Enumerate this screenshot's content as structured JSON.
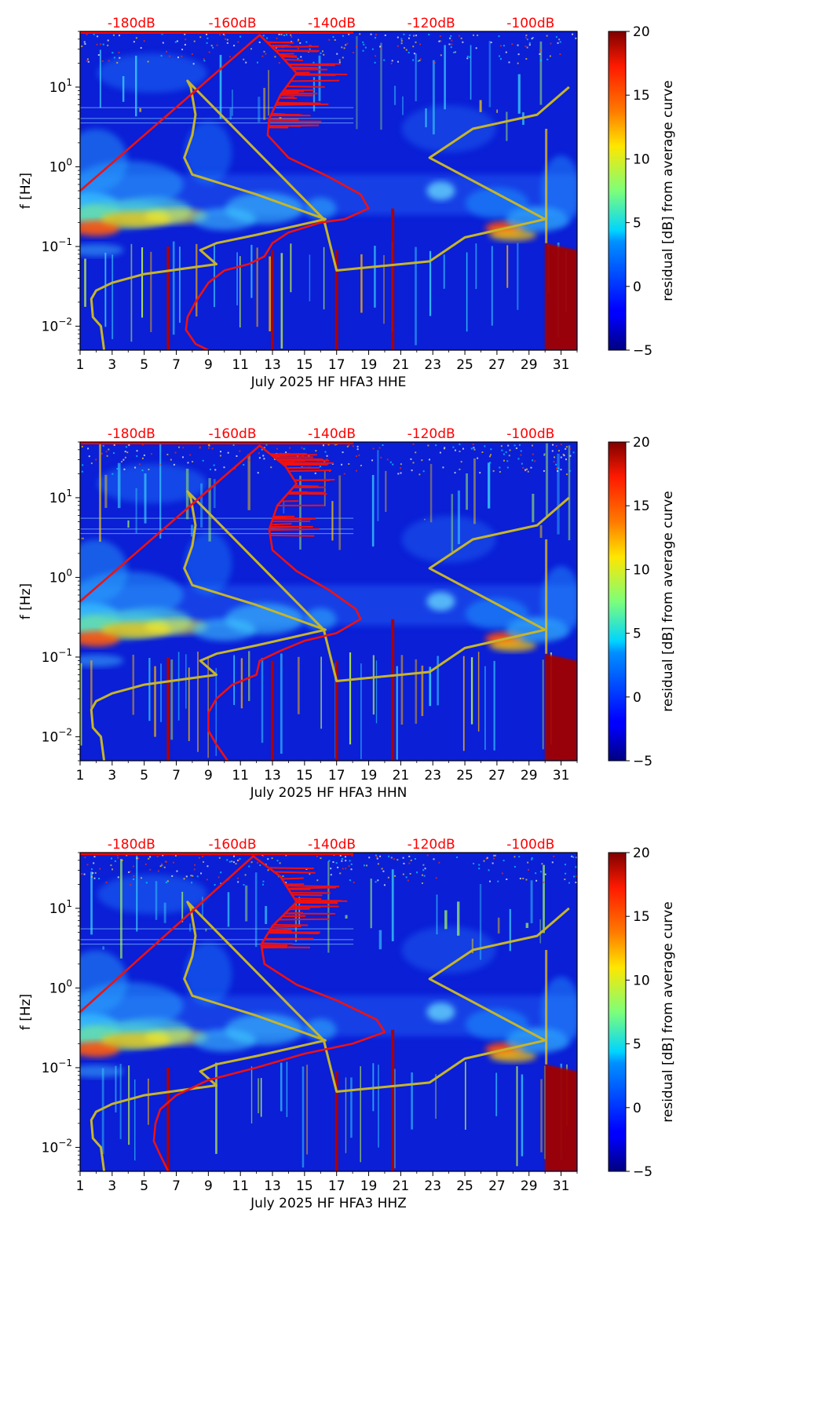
{
  "chart_data": [
    {
      "type": "heatmap",
      "channel": "HHE",
      "xlabel": "July 2025 HF HFA3  HHE",
      "ylabel": "f [Hz]",
      "x_ticks": [
        "1",
        "3",
        "5",
        "7",
        "9",
        "11",
        "13",
        "15",
        "17",
        "19",
        "21",
        "23",
        "25",
        "27",
        "29",
        "31"
      ],
      "x_range": [
        1,
        32
      ],
      "y_scale": "log",
      "y_range": [
        0.005,
        50
      ],
      "y_ticks": [
        {
          "base": "10",
          "exp": "1",
          "value": 10
        },
        {
          "base": "10",
          "exp": "0",
          "value": 1
        },
        {
          "base": "10",
          "exp": "−1",
          "value": 0.1
        },
        {
          "base": "10",
          "exp": "−2",
          "value": 0.01
        }
      ],
      "ref_labels": [
        {
          "text": "-180dB",
          "day": 4.2
        },
        {
          "text": "-160dB",
          "day": 10.5
        },
        {
          "text": "-140dB",
          "day": 16.7
        },
        {
          "text": "-120dB",
          "day": 22.9
        },
        {
          "text": "-100dB",
          "day": 29.1
        }
      ],
      "colorbar": {
        "label": "residual [dB] from average curve",
        "min": -5,
        "max": 20,
        "ticks": [
          "20",
          "15",
          "10",
          "5",
          "0",
          "−5"
        ]
      },
      "red_curve": [
        [
          1.0,
          0.5
        ],
        [
          12.2,
          45
        ],
        [
          13.5,
          25
        ],
        [
          14.5,
          15
        ],
        [
          13.5,
          8
        ],
        [
          12.8,
          4
        ],
        [
          12.7,
          2.5
        ],
        [
          14.0,
          1.3
        ],
        [
          16.5,
          0.75
        ],
        [
          18.5,
          0.45
        ],
        [
          19.0,
          0.3
        ],
        [
          17.5,
          0.22
        ],
        [
          16.0,
          0.2
        ],
        [
          14.0,
          0.15
        ],
        [
          13.0,
          0.11
        ],
        [
          12.5,
          0.075
        ],
        [
          11.5,
          0.06
        ],
        [
          10.0,
          0.05
        ],
        [
          9.0,
          0.035
        ],
        [
          8.2,
          0.02
        ],
        [
          7.7,
          0.013
        ],
        [
          7.6,
          0.009
        ],
        [
          8.2,
          0.006
        ],
        [
          9.0,
          0.005
        ]
      ],
      "yellow_curve": [
        [
          2.5,
          0.005
        ],
        [
          2.3,
          0.01
        ],
        [
          1.8,
          0.013
        ],
        [
          1.7,
          0.022
        ],
        [
          2.0,
          0.028
        ],
        [
          3.0,
          0.035
        ],
        [
          5.0,
          0.045
        ],
        [
          9.5,
          0.06
        ],
        [
          8.5,
          0.09
        ],
        [
          9.5,
          0.11
        ],
        [
          12.0,
          0.14
        ],
        [
          16.3,
          0.22
        ],
        [
          12.0,
          0.45
        ],
        [
          10.0,
          0.6
        ],
        [
          8.0,
          0.8
        ],
        [
          7.5,
          1.3
        ],
        [
          8.0,
          2.5
        ],
        [
          8.2,
          4.5
        ],
        [
          7.9,
          10
        ],
        [
          7.7,
          12
        ],
        [
          16.2,
          0.22
        ],
        [
          17.0,
          0.05
        ],
        [
          22.8,
          0.065
        ],
        [
          25.0,
          0.13
        ],
        [
          30.0,
          0.22
        ],
        [
          22.8,
          1.3
        ],
        [
          25.5,
          3.0
        ],
        [
          29.5,
          4.5
        ],
        [
          31.5,
          10
        ]
      ],
      "hot_days": [
        6.5,
        13.0,
        17.0,
        20.5,
        30.0
      ],
      "low_shift": 0
    },
    {
      "type": "heatmap",
      "channel": "HHN",
      "xlabel": "July 2025 HF HFA3  HHN",
      "ylabel": "f [Hz]",
      "x_ticks": [
        "1",
        "3",
        "5",
        "7",
        "9",
        "11",
        "13",
        "15",
        "17",
        "19",
        "21",
        "23",
        "25",
        "27",
        "29",
        "31"
      ],
      "x_range": [
        1,
        32
      ],
      "y_scale": "log",
      "y_range": [
        0.005,
        50
      ],
      "y_ticks": [
        {
          "base": "10",
          "exp": "1",
          "value": 10
        },
        {
          "base": "10",
          "exp": "0",
          "value": 1
        },
        {
          "base": "10",
          "exp": "−1",
          "value": 0.1
        },
        {
          "base": "10",
          "exp": "−2",
          "value": 0.01
        }
      ],
      "ref_labels": [
        {
          "text": "-180dB",
          "day": 4.2
        },
        {
          "text": "-160dB",
          "day": 10.5
        },
        {
          "text": "-140dB",
          "day": 16.7
        },
        {
          "text": "-120dB",
          "day": 22.9
        },
        {
          "text": "-100dB",
          "day": 29.1
        }
      ],
      "colorbar": {
        "label": "residual [dB] from average curve",
        "min": -5,
        "max": 20,
        "ticks": [
          "20",
          "15",
          "10",
          "5",
          "0",
          "−5"
        ]
      },
      "red_curve": [
        [
          1.0,
          0.5
        ],
        [
          12.2,
          45
        ],
        [
          13.8,
          25
        ],
        [
          14.5,
          15
        ],
        [
          13.3,
          8
        ],
        [
          12.8,
          4
        ],
        [
          13.0,
          2.2
        ],
        [
          14.5,
          1.2
        ],
        [
          16.5,
          0.7
        ],
        [
          18.2,
          0.4
        ],
        [
          18.5,
          0.3
        ],
        [
          17.0,
          0.2
        ],
        [
          15.0,
          0.16
        ],
        [
          13.5,
          0.12
        ],
        [
          12.2,
          0.09
        ],
        [
          12.0,
          0.06
        ],
        [
          10.5,
          0.045
        ],
        [
          9.5,
          0.03
        ],
        [
          9.0,
          0.02
        ],
        [
          9.0,
          0.012
        ],
        [
          9.5,
          0.008
        ],
        [
          10.2,
          0.005
        ]
      ],
      "yellow_curve": [
        [
          2.5,
          0.005
        ],
        [
          2.3,
          0.01
        ],
        [
          1.8,
          0.013
        ],
        [
          1.7,
          0.022
        ],
        [
          2.0,
          0.028
        ],
        [
          3.0,
          0.035
        ],
        [
          5.0,
          0.045
        ],
        [
          9.5,
          0.06
        ],
        [
          8.5,
          0.09
        ],
        [
          9.5,
          0.11
        ],
        [
          12.0,
          0.14
        ],
        [
          16.3,
          0.22
        ],
        [
          12.0,
          0.45
        ],
        [
          10.0,
          0.6
        ],
        [
          8.0,
          0.8
        ],
        [
          7.5,
          1.3
        ],
        [
          8.0,
          2.5
        ],
        [
          8.2,
          4.5
        ],
        [
          7.9,
          10
        ],
        [
          7.7,
          12
        ],
        [
          16.2,
          0.22
        ],
        [
          17.0,
          0.05
        ],
        [
          22.8,
          0.065
        ],
        [
          25.0,
          0.13
        ],
        [
          30.0,
          0.22
        ],
        [
          22.8,
          1.3
        ],
        [
          25.5,
          3.0
        ],
        [
          29.5,
          4.5
        ],
        [
          31.5,
          10
        ]
      ],
      "hot_days": [
        6.5,
        13.0,
        17.0,
        20.5,
        30.0
      ],
      "low_shift": 0
    },
    {
      "type": "heatmap",
      "channel": "HHZ",
      "xlabel": "July 2025 HF HFA3  HHZ",
      "ylabel": "f [Hz]",
      "x_ticks": [
        "1",
        "3",
        "5",
        "7",
        "9",
        "11",
        "13",
        "15",
        "17",
        "19",
        "21",
        "23",
        "25",
        "27",
        "29",
        "31"
      ],
      "x_range": [
        1,
        32
      ],
      "y_scale": "log",
      "y_range": [
        0.005,
        50
      ],
      "y_ticks": [
        {
          "base": "10",
          "exp": "1",
          "value": 10
        },
        {
          "base": "10",
          "exp": "0",
          "value": 1
        },
        {
          "base": "10",
          "exp": "−1",
          "value": 0.1
        },
        {
          "base": "10",
          "exp": "−2",
          "value": 0.01
        }
      ],
      "ref_labels": [
        {
          "text": "-180dB",
          "day": 4.2
        },
        {
          "text": "-160dB",
          "day": 10.5
        },
        {
          "text": "-140dB",
          "day": 16.7
        },
        {
          "text": "-120dB",
          "day": 22.9
        },
        {
          "text": "-100dB",
          "day": 29.1
        }
      ],
      "colorbar": {
        "label": "residual [dB] from average curve",
        "min": -5,
        "max": 20,
        "ticks": [
          "20",
          "15",
          "10",
          "5",
          "0",
          "−5"
        ]
      },
      "red_curve": [
        [
          1.0,
          0.5
        ],
        [
          11.8,
          45
        ],
        [
          13.5,
          25
        ],
        [
          14.5,
          12
        ],
        [
          13.0,
          6
        ],
        [
          12.3,
          3.5
        ],
        [
          12.5,
          2.0
        ],
        [
          14.5,
          1.1
        ],
        [
          17.0,
          0.7
        ],
        [
          19.5,
          0.4
        ],
        [
          20.0,
          0.28
        ],
        [
          18.0,
          0.2
        ],
        [
          15.0,
          0.15
        ],
        [
          12.0,
          0.1
        ],
        [
          9.0,
          0.07
        ],
        [
          7.0,
          0.045
        ],
        [
          6.0,
          0.03
        ],
        [
          5.7,
          0.02
        ],
        [
          5.6,
          0.012
        ],
        [
          6.0,
          0.008
        ],
        [
          6.5,
          0.005
        ]
      ],
      "yellow_curve": [
        [
          2.5,
          0.005
        ],
        [
          2.3,
          0.01
        ],
        [
          1.8,
          0.013
        ],
        [
          1.7,
          0.022
        ],
        [
          2.0,
          0.028
        ],
        [
          3.0,
          0.035
        ],
        [
          5.0,
          0.045
        ],
        [
          9.5,
          0.06
        ],
        [
          8.5,
          0.09
        ],
        [
          9.5,
          0.11
        ],
        [
          12.0,
          0.14
        ],
        [
          16.3,
          0.22
        ],
        [
          12.0,
          0.45
        ],
        [
          10.0,
          0.6
        ],
        [
          8.0,
          0.8
        ],
        [
          7.5,
          1.3
        ],
        [
          8.0,
          2.5
        ],
        [
          8.2,
          4.5
        ],
        [
          7.9,
          10
        ],
        [
          7.7,
          12
        ],
        [
          16.2,
          0.22
        ],
        [
          17.0,
          0.05
        ],
        [
          22.8,
          0.065
        ],
        [
          25.0,
          0.13
        ],
        [
          30.0,
          0.22
        ],
        [
          22.8,
          1.3
        ],
        [
          25.5,
          3.0
        ],
        [
          29.5,
          4.5
        ],
        [
          31.5,
          10
        ]
      ],
      "hot_days": [
        6.5,
        17.0,
        20.5,
        30.0
      ],
      "low_shift": 1
    }
  ]
}
